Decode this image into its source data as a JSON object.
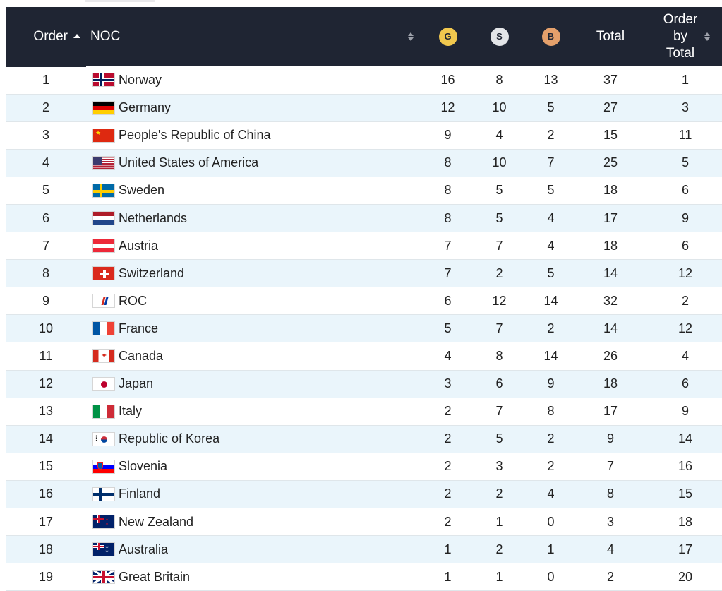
{
  "header": {
    "order": "Order",
    "noc": "NOC",
    "gold": "G",
    "silver": "S",
    "bronze": "B",
    "total": "Total",
    "order_by_total": "Order\nby\nTotal"
  },
  "colors": {
    "header_bg": "#1f2533",
    "row_alt": "#eaf5fb",
    "gold": "#f1c84e",
    "silver": "#e3e5e8",
    "bronze": "#e4a06b"
  },
  "rows": [
    {
      "order": "1",
      "country": "Norway",
      "flag": "flag-norway-icon",
      "g": "16",
      "s": "8",
      "b": "13",
      "total": "37",
      "obt": "1"
    },
    {
      "order": "2",
      "country": "Germany",
      "flag": "flag-germany-icon",
      "g": "12",
      "s": "10",
      "b": "5",
      "total": "27",
      "obt": "3"
    },
    {
      "order": "3",
      "country": "People's Republic of China",
      "flag": "flag-china-icon",
      "g": "9",
      "s": "4",
      "b": "2",
      "total": "15",
      "obt": "11"
    },
    {
      "order": "4",
      "country": "United States of America",
      "flag": "flag-usa-icon",
      "g": "8",
      "s": "10",
      "b": "7",
      "total": "25",
      "obt": "5"
    },
    {
      "order": "5",
      "country": "Sweden",
      "flag": "flag-sweden-icon",
      "g": "8",
      "s": "5",
      "b": "5",
      "total": "18",
      "obt": "6"
    },
    {
      "order": "6",
      "country": "Netherlands",
      "flag": "flag-netherlands-icon",
      "g": "8",
      "s": "5",
      "b": "4",
      "total": "17",
      "obt": "9"
    },
    {
      "order": "7",
      "country": "Austria",
      "flag": "flag-austria-icon",
      "g": "7",
      "s": "7",
      "b": "4",
      "total": "18",
      "obt": "6"
    },
    {
      "order": "8",
      "country": "Switzerland",
      "flag": "flag-switzerland-icon",
      "g": "7",
      "s": "2",
      "b": "5",
      "total": "14",
      "obt": "12"
    },
    {
      "order": "9",
      "country": "ROC",
      "flag": "flag-roc-icon",
      "g": "6",
      "s": "12",
      "b": "14",
      "total": "32",
      "obt": "2"
    },
    {
      "order": "10",
      "country": "France",
      "flag": "flag-france-icon",
      "g": "5",
      "s": "7",
      "b": "2",
      "total": "14",
      "obt": "12"
    },
    {
      "order": "11",
      "country": "Canada",
      "flag": "flag-canada-icon",
      "g": "4",
      "s": "8",
      "b": "14",
      "total": "26",
      "obt": "4"
    },
    {
      "order": "12",
      "country": "Japan",
      "flag": "flag-japan-icon",
      "g": "3",
      "s": "6",
      "b": "9",
      "total": "18",
      "obt": "6"
    },
    {
      "order": "13",
      "country": "Italy",
      "flag": "flag-italy-icon",
      "g": "2",
      "s": "7",
      "b": "8",
      "total": "17",
      "obt": "9"
    },
    {
      "order": "14",
      "country": "Republic of Korea",
      "flag": "flag-korea-icon",
      "g": "2",
      "s": "5",
      "b": "2",
      "total": "9",
      "obt": "14"
    },
    {
      "order": "15",
      "country": "Slovenia",
      "flag": "flag-slovenia-icon",
      "g": "2",
      "s": "3",
      "b": "2",
      "total": "7",
      "obt": "16"
    },
    {
      "order": "16",
      "country": "Finland",
      "flag": "flag-finland-icon",
      "g": "2",
      "s": "2",
      "b": "4",
      "total": "8",
      "obt": "15"
    },
    {
      "order": "17",
      "country": "New Zealand",
      "flag": "flag-new-zealand-icon",
      "g": "2",
      "s": "1",
      "b": "0",
      "total": "3",
      "obt": "18"
    },
    {
      "order": "18",
      "country": "Australia",
      "flag": "flag-australia-icon",
      "g": "1",
      "s": "2",
      "b": "1",
      "total": "4",
      "obt": "17"
    },
    {
      "order": "19",
      "country": "Great Britain",
      "flag": "flag-great-britain-icon",
      "g": "1",
      "s": "1",
      "b": "0",
      "total": "2",
      "obt": "20"
    }
  ]
}
